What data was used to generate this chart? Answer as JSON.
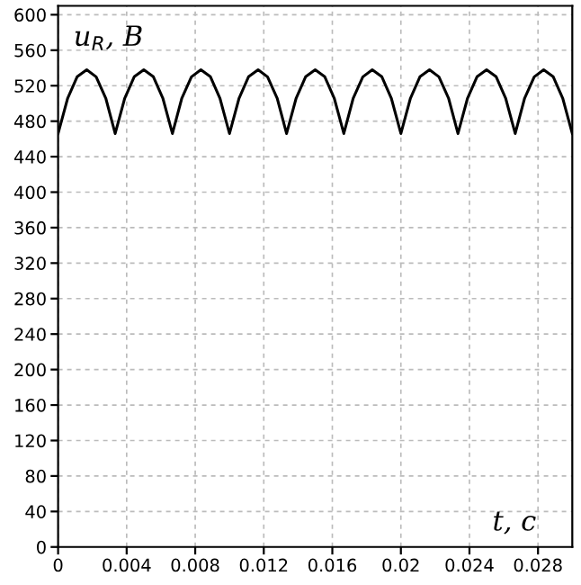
{
  "chart_data": {
    "type": "line",
    "xlabel": "t, c",
    "ylabel": "u$_{R}$, B",
    "x": [
      0,
      0.00056,
      0.00111,
      0.00167,
      0.00222,
      0.00278,
      0.00333,
      0.00389,
      0.00444,
      0.005,
      0.00556,
      0.00611,
      0.00667,
      0.00722,
      0.00778,
      0.00833,
      0.00889,
      0.00944,
      0.01,
      0.01056,
      0.01111,
      0.01167,
      0.01222,
      0.01278,
      0.01333,
      0.01389,
      0.01444,
      0.015,
      0.01556,
      0.01611,
      0.01667,
      0.01722,
      0.01778,
      0.01833,
      0.01889,
      0.01944,
      0.02,
      0.02056,
      0.02111,
      0.02167,
      0.02222,
      0.02278,
      0.02333,
      0.02389,
      0.02444,
      0.025,
      0.02556,
      0.02611,
      0.02667,
      0.02722,
      0.02778,
      0.02833,
      0.02889,
      0.02944,
      0.03
    ],
    "series": [
      {
        "color": "#000000",
        "values": [
          466,
          506,
          530,
          538,
          530,
          506,
          466,
          506,
          530,
          538,
          530,
          506,
          466,
          506,
          530,
          538,
          530,
          506,
          466,
          506,
          530,
          538,
          530,
          506,
          466,
          506,
          530,
          538,
          530,
          506,
          466,
          506,
          530,
          538,
          530,
          506,
          466,
          506,
          530,
          538,
          530,
          506,
          466,
          506,
          530,
          538,
          530,
          506,
          466,
          506,
          530,
          538,
          530,
          506,
          466
        ]
      }
    ],
    "xlim": [
      0,
      0.03
    ],
    "ylim": [
      0,
      610
    ],
    "xticks": [
      0,
      0.004,
      0.008,
      0.012,
      0.016,
      0.02,
      0.024,
      0.028
    ],
    "yticks": [
      0,
      40,
      80,
      120,
      160,
      200,
      240,
      280,
      320,
      360,
      400,
      440,
      480,
      520,
      560,
      600
    ],
    "grid": true,
    "legend": false,
    "marker": "none",
    "line_style": "solid"
  }
}
